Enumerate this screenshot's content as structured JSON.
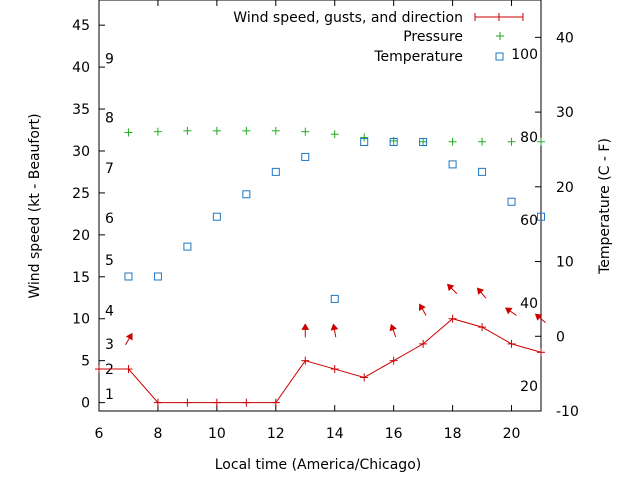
{
  "chart_data": {
    "type": "line",
    "xlabel": "Local time (America/Chicago)",
    "ylabel_left": "Wind speed (kt - Beaufort)",
    "ylabel_right": "Temperature (C - F)",
    "x_range": [
      6,
      21
    ],
    "x_ticks": [
      "6",
      "8",
      "10",
      "12",
      "14",
      "16",
      "18",
      "20"
    ],
    "y_left_range": [
      -1,
      48
    ],
    "y_left_ticks": [
      "0",
      "5",
      "10",
      "15",
      "20",
      "25",
      "30",
      "35",
      "40",
      "45"
    ],
    "y_right_range": [
      -10,
      45
    ],
    "y_right_ticks": [
      "-10",
      "0",
      "10",
      "20",
      "30",
      "40"
    ],
    "beaufort_labels": [
      "1",
      "2",
      "3",
      "4",
      "5",
      "6",
      "7",
      "8",
      "9"
    ],
    "fahrenheit_labels": [
      "20",
      "40",
      "60",
      "80",
      "100"
    ],
    "legend": {
      "wind": "Wind speed, gusts, and direction",
      "pressure": "Pressure",
      "temperature": "Temperature"
    },
    "colors": {
      "wind": "#cc0000",
      "pressure": "#22aa22",
      "temperature": "#1f77c4"
    },
    "series": [
      {
        "name": "Wind speed, gusts, and direction",
        "x": [
          6,
          7,
          8,
          9,
          10,
          11,
          12,
          13,
          14,
          15,
          16,
          17,
          18,
          19,
          20,
          21
        ],
        "values": [
          4,
          4,
          0,
          0,
          0,
          0,
          0,
          5,
          4,
          3,
          5,
          7,
          10,
          9,
          7,
          6
        ]
      },
      {
        "name": "Pressure",
        "x": [
          7,
          8,
          9,
          10,
          11,
          12,
          13,
          14,
          15,
          16,
          17,
          18,
          19,
          20,
          21
        ],
        "values": [
          32.2,
          32.3,
          32.4,
          32.4,
          32.4,
          32.4,
          32.3,
          32.0,
          31.6,
          31.2,
          31.1,
          31.1,
          31.1,
          31.1,
          31.1
        ]
      },
      {
        "name": "Temperature",
        "x": [
          7,
          8,
          9,
          10,
          11,
          12,
          13,
          14,
          15,
          16,
          17,
          18,
          19,
          20,
          21
        ],
        "values": [
          8,
          8,
          12,
          16,
          19,
          22,
          24,
          5,
          26,
          26,
          26,
          23,
          22,
          18,
          16
        ]
      }
    ],
    "wind_direction_arrows": [
      {
        "x": 7,
        "y": 7.5,
        "angle": 30
      },
      {
        "x": 13,
        "y": 8.5,
        "angle": 0
      },
      {
        "x": 14,
        "y": 8.5,
        "angle": -10
      },
      {
        "x": 16,
        "y": 8.5,
        "angle": -20
      },
      {
        "x": 17,
        "y": 11.0,
        "angle": -30
      },
      {
        "x": 18,
        "y": 13.5,
        "angle": -45
      },
      {
        "x": 19,
        "y": 13.0,
        "angle": -40
      },
      {
        "x": 20,
        "y": 10.8,
        "angle": -55
      },
      {
        "x": 21,
        "y": 10.0,
        "angle": -50
      }
    ]
  }
}
